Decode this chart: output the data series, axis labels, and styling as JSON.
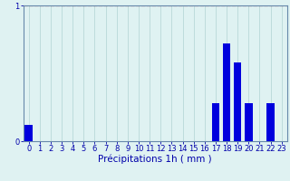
{
  "hours": [
    0,
    1,
    2,
    3,
    4,
    5,
    6,
    7,
    8,
    9,
    10,
    11,
    12,
    13,
    14,
    15,
    16,
    17,
    18,
    19,
    20,
    21,
    22,
    23
  ],
  "values": [
    0.12,
    0.0,
    0.0,
    0.0,
    0.0,
    0.0,
    0.0,
    0.0,
    0.0,
    0.0,
    0.0,
    0.0,
    0.0,
    0.0,
    0.0,
    0.0,
    0.0,
    0.28,
    0.72,
    0.58,
    0.28,
    0.0,
    0.28,
    0.0
  ],
  "bar_color": "#0000dd",
  "background_color": "#dff2f2",
  "grid_color": "#b8d8d8",
  "axis_color": "#6688aa",
  "xlabel": "Précipitations 1h ( mm )",
  "ylim": [
    0,
    1.0
  ],
  "yticks": [
    0,
    1
  ],
  "xlim": [
    -0.5,
    23.5
  ],
  "tick_color": "#0000aa",
  "xlabel_fontsize": 7.5,
  "tick_fontsize": 6.0,
  "redline_color": "#dd0000",
  "bar_width": 0.7
}
